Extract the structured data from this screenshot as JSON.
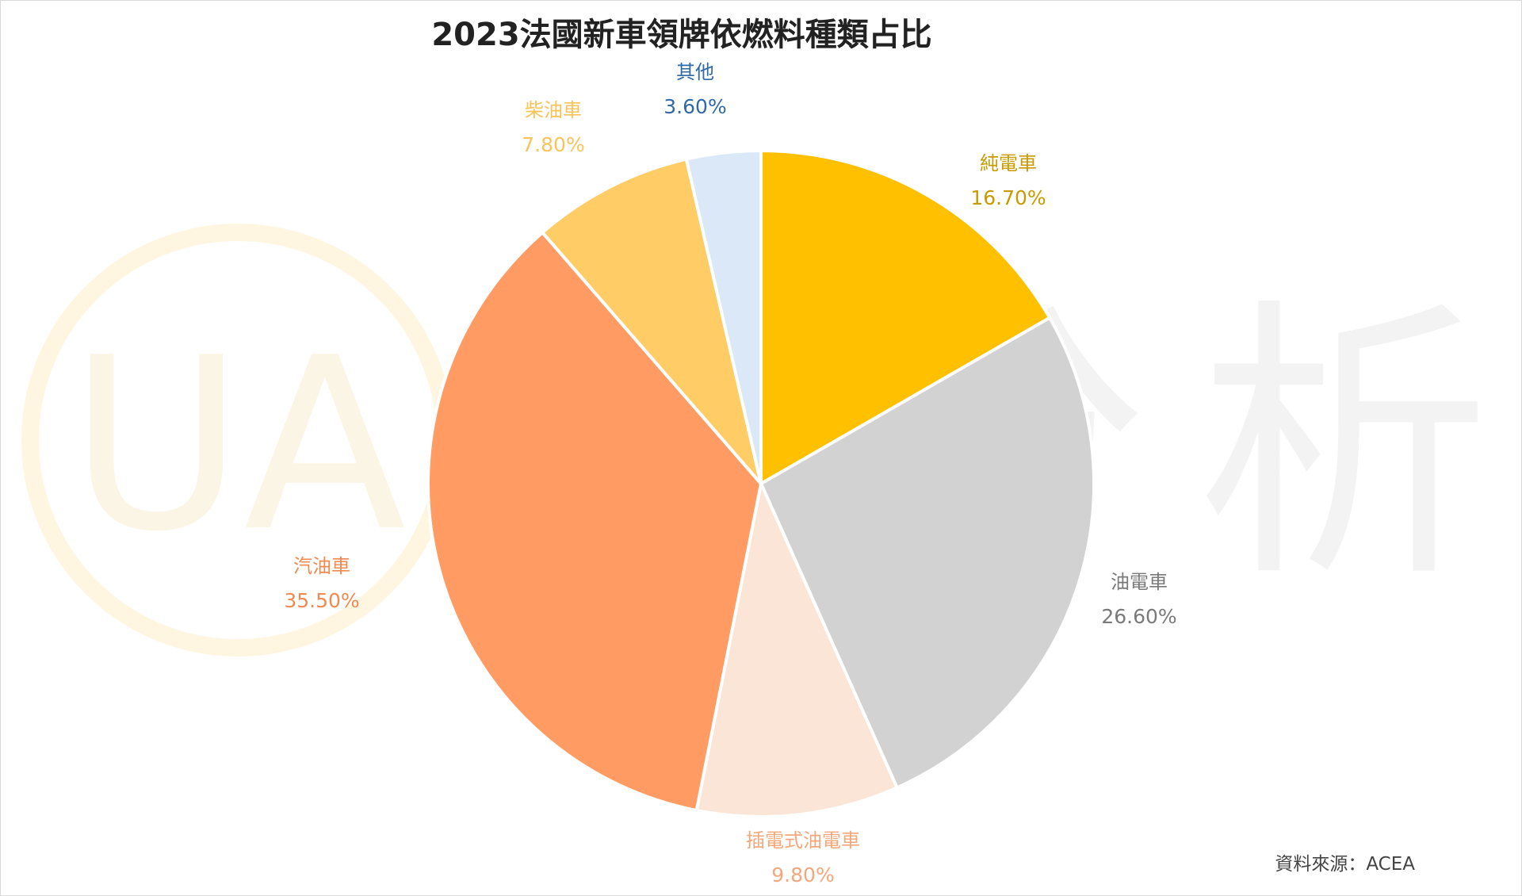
{
  "chart_data": {
    "type": "pie",
    "title": "2023法國新車領牌依燃料種類占比",
    "slices": [
      {
        "label": "純電車",
        "value": 16.7,
        "display": "16.70%",
        "color": "#FFC000",
        "label_color": "#C99A00"
      },
      {
        "label": "油電車",
        "value": 26.6,
        "display": "26.60%",
        "color": "#D2D2D2",
        "label_color": "#7A7A7A"
      },
      {
        "label": "插電式油電車",
        "value": 9.8,
        "display": "9.80%",
        "color": "#FBE5D6",
        "label_color": "#F4A77A"
      },
      {
        "label": "汽油車",
        "value": 35.5,
        "display": "35.50%",
        "color": "#FF9B63",
        "label_color": "#F08A52"
      },
      {
        "label": "柴油車",
        "value": 7.8,
        "display": "7.80%",
        "color": "#FFCC66",
        "label_color": "#F8C45A"
      },
      {
        "label": "其他",
        "value": 3.6,
        "display": "3.60%",
        "color": "#DAE8F7",
        "label_color": "#2E6AA8"
      }
    ],
    "start_angle_deg": 0,
    "direction": "clockwise"
  },
  "source": "資料來源：ACEA",
  "watermark": {
    "logo_text": "UA",
    "text": "優分析"
  }
}
